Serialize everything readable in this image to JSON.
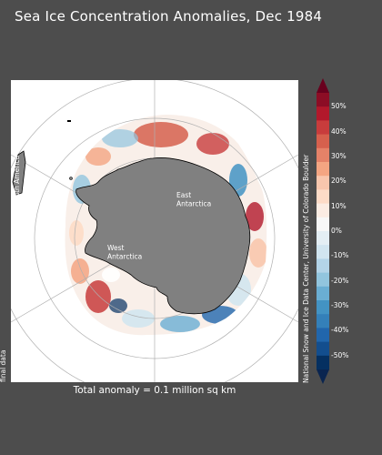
{
  "title": "Sea Ice Concentration Anomalies, Dec 1984",
  "total_anomaly": "Total anomaly = 0.1 million sq km",
  "data_status": "final data",
  "credit": "National Snow and Ice Data Center, University of Colorado Boulder",
  "map_labels": {
    "south_america": "South America",
    "east_antarctica": "East\nAntarctica",
    "west_antarctica": "West\nAntarctica"
  },
  "colorbar": {
    "ticks": [
      "50%",
      "40%",
      "30%",
      "20%",
      "10%",
      "0%",
      "-10%",
      "-20%",
      "-30%",
      "-40%",
      "-50%"
    ],
    "colors": [
      "#69001e",
      "#8c0d25",
      "#b2182b",
      "#c83c3c",
      "#d6604d",
      "#e58268",
      "#f4a582",
      "#f8c6ad",
      "#fddbc7",
      "#fbece3",
      "#f7f7f7",
      "#e4eef4",
      "#d1e5f0",
      "#b3d4e8",
      "#92c5de",
      "#6aaed3",
      "#4393c3",
      "#3480b9",
      "#2166ac",
      "#134e8e",
      "#053061",
      "#0a2550"
    ]
  },
  "colors": {
    "background": "#4d4d4d",
    "land": "#808080",
    "ocean": "#ffffff",
    "grid": "#b0b0b0"
  }
}
